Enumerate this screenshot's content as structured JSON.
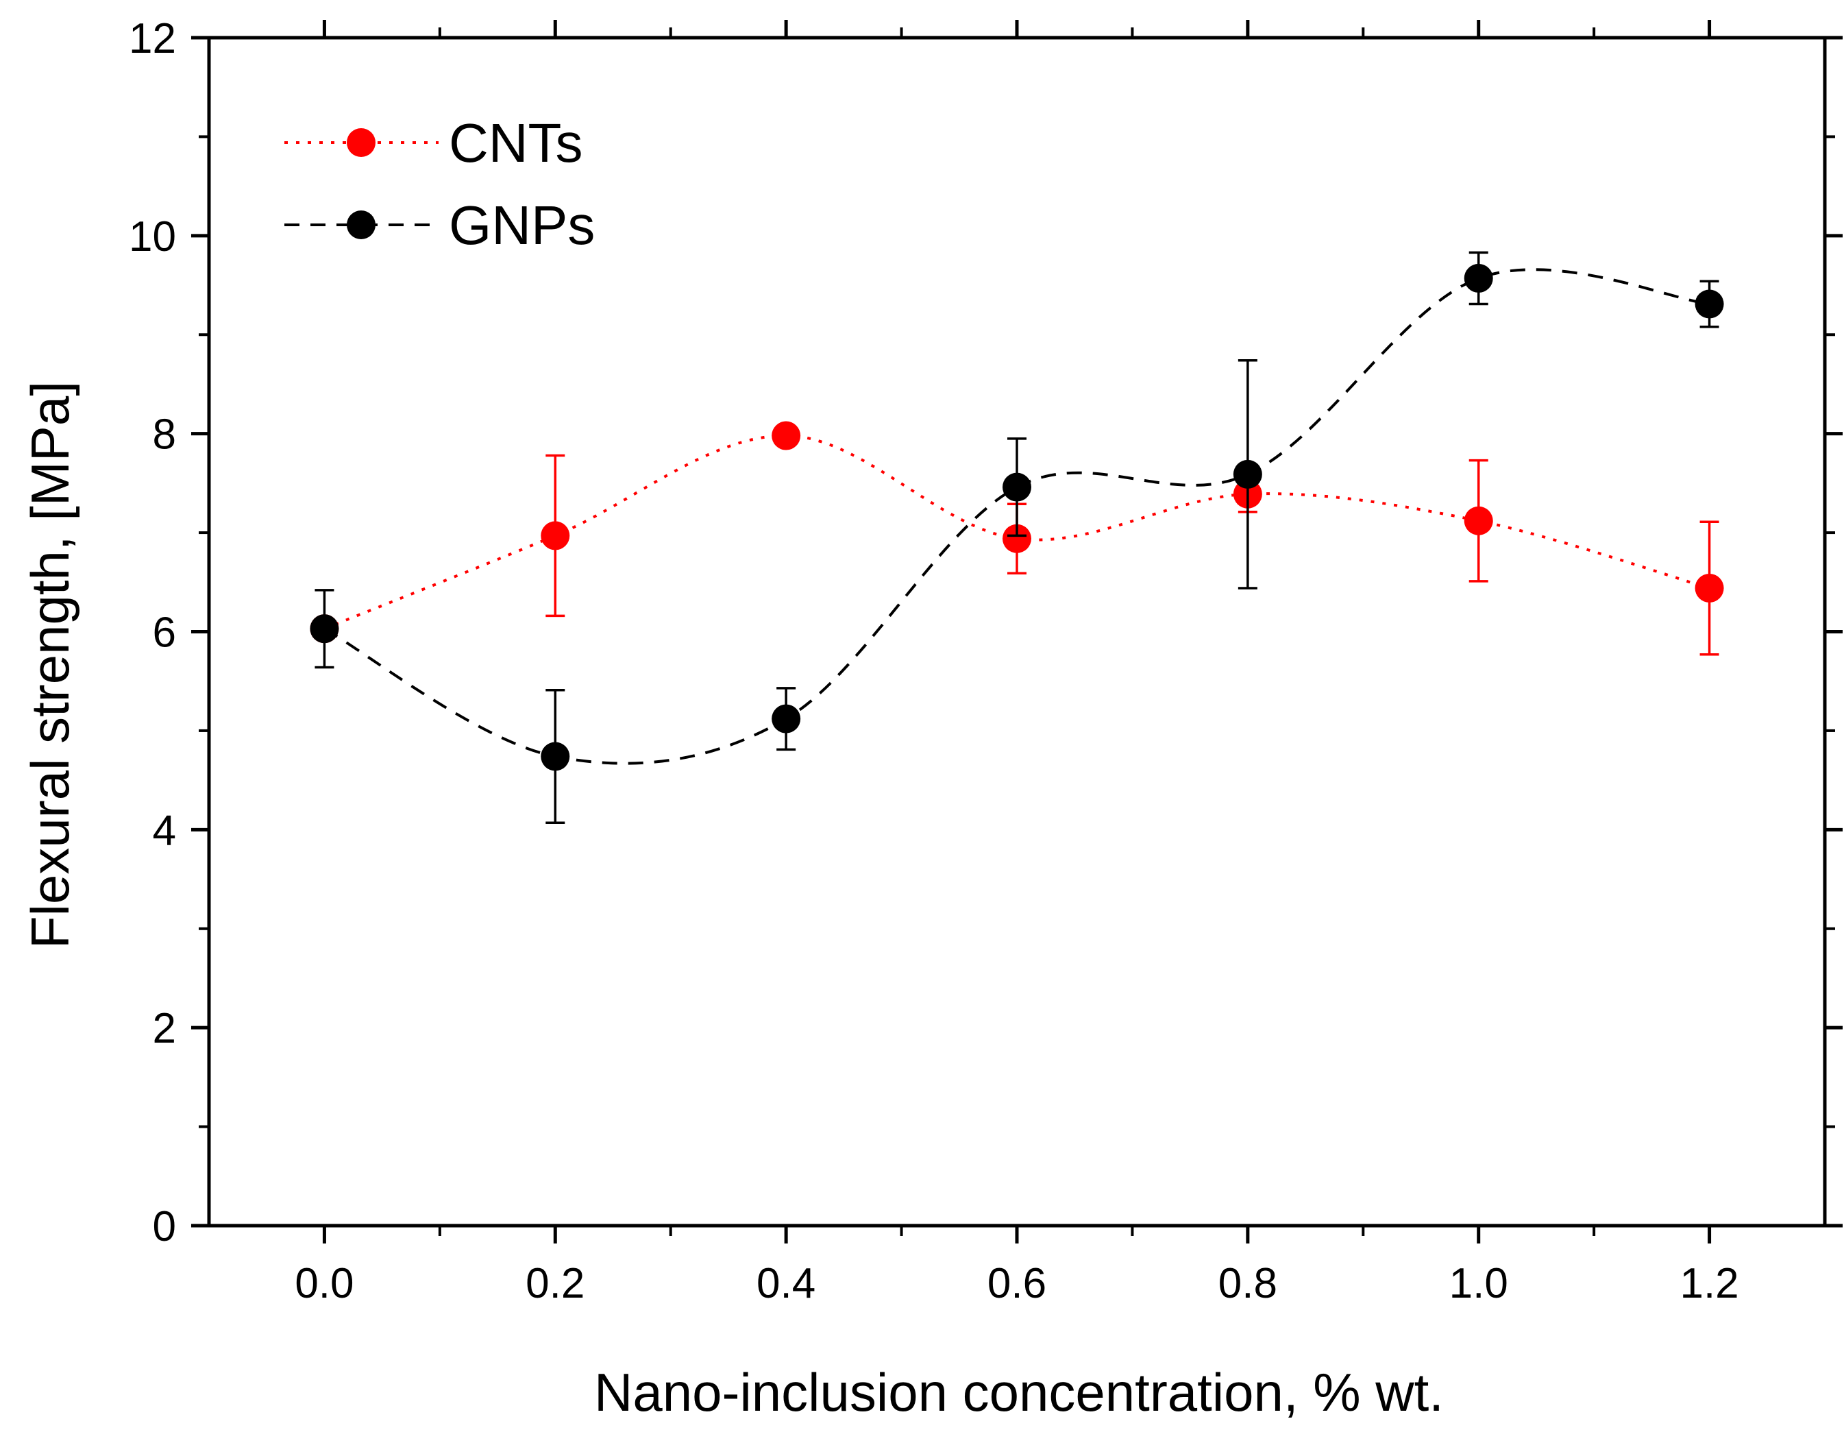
{
  "chart_data": {
    "type": "scatter",
    "xlabel": "Nano-inclusion concentration, % wt.",
    "ylabel": "Flexural strength, [MPa]",
    "xlim": [
      -0.1,
      1.3
    ],
    "ylim": [
      0,
      12
    ],
    "x_ticks": [
      "0.0",
      "0.2",
      "0.4",
      "0.6",
      "0.8",
      "1.0",
      "1.2"
    ],
    "x_tick_values": [
      0.0,
      0.2,
      0.4,
      0.6,
      0.8,
      1.0,
      1.2
    ],
    "x_minor_step": 0.1,
    "y_ticks": [
      "0",
      "2",
      "4",
      "6",
      "8",
      "10",
      "12"
    ],
    "y_tick_values": [
      0,
      2,
      4,
      6,
      8,
      10,
      12
    ],
    "y_minor_step": 1,
    "grid": false,
    "legend_position": "top-left",
    "series": [
      {
        "name": "CNTs",
        "color": "#ff0000",
        "line_style": "dotted",
        "x": [
          0.0,
          0.2,
          0.4,
          0.6,
          0.8,
          1.0,
          1.2
        ],
        "y": [
          6.03,
          6.97,
          7.98,
          6.94,
          7.39,
          7.12,
          6.44
        ],
        "error": [
          0.0,
          0.81,
          0.0,
          0.35,
          0.18,
          0.61,
          0.67
        ]
      },
      {
        "name": "GNPs",
        "color": "#000000",
        "line_style": "dashed",
        "x": [
          0.0,
          0.2,
          0.4,
          0.6,
          0.8,
          1.0,
          1.2
        ],
        "y": [
          6.03,
          4.74,
          5.12,
          7.46,
          7.59,
          9.57,
          9.31
        ],
        "error": [
          0.39,
          0.67,
          0.31,
          0.49,
          1.15,
          0.26,
          0.23
        ]
      }
    ]
  }
}
